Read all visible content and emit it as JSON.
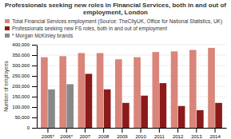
{
  "chart_data": {
    "type": "bar",
    "title": "Professionals seeking new roles in Financial Services, both in and out of employment, London",
    "categories": [
      "2005*",
      "2006*",
      "2007",
      "2008",
      "2009",
      "2010",
      "2011",
      "2012",
      "2013",
      "2014"
    ],
    "series": [
      {
        "name": "Total Financial Services employment (Source: TheCityUK, Office for National Statistics, UK)",
        "color": "#D9857A",
        "values": [
          340000,
          345000,
          360000,
          360000,
          330000,
          340000,
          365000,
          368000,
          375000,
          385000
        ]
      },
      {
        "name": "Professionals seeking new FS roles, both in and out of employment",
        "color": "#8B1A1A",
        "colors": [
          "#888888",
          "#888888",
          "#8B1A1A",
          "#8B1A1A",
          "#8B1A1A",
          "#8B1A1A",
          "#8B1A1A",
          "#8B1A1A",
          "#8B1A1A",
          "#8B1A1A"
        ],
        "values": [
          185000,
          210000,
          260000,
          185000,
          120000,
          155000,
          215000,
          105000,
          85000,
          120000
        ]
      }
    ],
    "annotations": [
      {
        "text": "* Morgan McKinley brands",
        "color": "#888888"
      }
    ],
    "ylabel": "Number of employees",
    "ylim": [
      0,
      400000
    ],
    "yticks": [
      0,
      {
        "value": 50000,
        "label": "50,000"
      },
      {
        "value": 100000,
        "label": "100,000"
      },
      {
        "value": 150000,
        "label": "150,000"
      },
      {
        "value": 200000,
        "label": "200,000"
      },
      {
        "value": 250000,
        "label": "250,000"
      },
      {
        "value": 300000,
        "label": "300,000"
      },
      {
        "value": 350000,
        "label": "350,000"
      },
      {
        "value": 400000,
        "label": "400,000"
      }
    ],
    "grid": true,
    "legend": "top"
  }
}
